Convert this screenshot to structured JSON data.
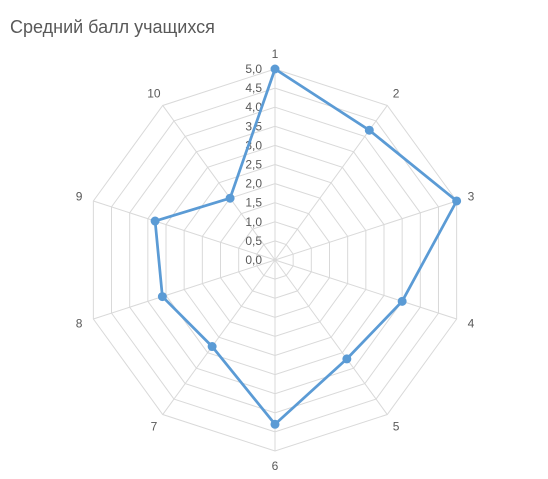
{
  "chart_data": {
    "type": "radar",
    "title": "Средний балл учащихся",
    "categories": [
      "1",
      "2",
      "3",
      "4",
      "5",
      "6",
      "7",
      "8",
      "9",
      "10"
    ],
    "series": [
      {
        "values": [
          5.0,
          4.2,
          5.0,
          3.5,
          3.2,
          4.3,
          2.8,
          3.1,
          3.3,
          2.0
        ]
      }
    ],
    "rlim": [
      0,
      5
    ],
    "r_step": 0.5,
    "tick_labels": [
      "0,0",
      "0,5",
      "1,0",
      "1,5",
      "2,0",
      "2,5",
      "3,0",
      "3,5",
      "4,0",
      "4,5",
      "5,0"
    ],
    "grid": true,
    "legend": "none",
    "colors": {
      "series": "#5b9bd5",
      "grid": "#d9d9d9",
      "text": "#595959",
      "background": "#ffffff"
    }
  }
}
